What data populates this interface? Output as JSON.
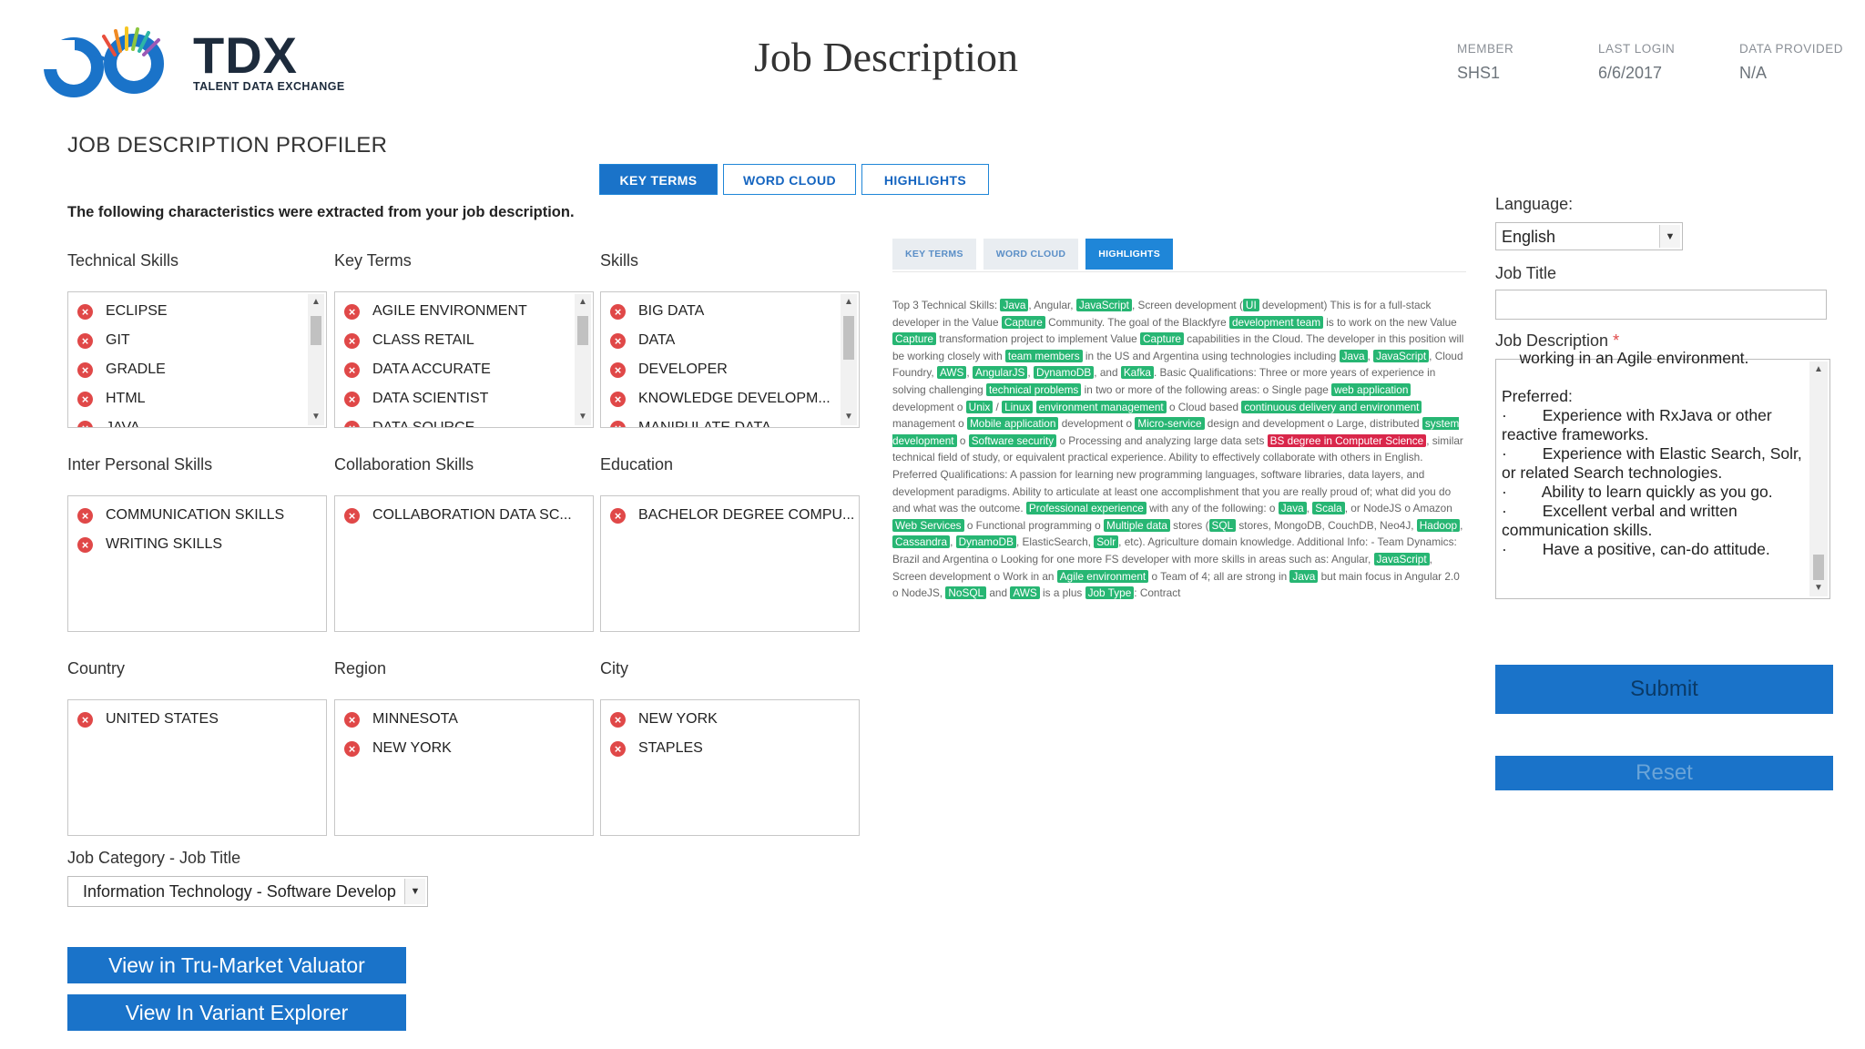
{
  "brand": {
    "name": "TDX",
    "tagline": "TALENT DATA EXCHANGE"
  },
  "page_title": "Job Description",
  "meta": [
    {
      "label": "MEMBER",
      "value": "SHS1"
    },
    {
      "label": "LAST LOGIN",
      "value": "6/6/2017"
    },
    {
      "label": "DATA PROVIDED",
      "value": "N/A"
    }
  ],
  "section_title": "JOB DESCRIPTION PROFILER",
  "tabs": [
    "KEY TERMS",
    "WORD CLOUD",
    "HIGHLIGHTS"
  ],
  "active_tab": "KEY TERMS",
  "intro": "The following characteristics were extracted from your job description.",
  "boxes": {
    "technical_skills": {
      "label": "Technical Skills",
      "items": [
        "ECLIPSE",
        "GIT",
        "GRADLE",
        "HTML",
        "JAVA"
      ]
    },
    "key_terms": {
      "label": "Key Terms",
      "items": [
        "AGILE ENVIRONMENT",
        "CLASS RETAIL",
        "DATA ACCURATE",
        "DATA SCIENTIST",
        "DATA SOURCE"
      ]
    },
    "skills": {
      "label": "Skills",
      "items": [
        "BIG DATA",
        "DATA",
        "DEVELOPER",
        "KNOWLEDGE DEVELOPM...",
        "MANIPULATE DATA"
      ]
    },
    "inter_personal": {
      "label": "Inter Personal Skills",
      "items": [
        "COMMUNICATION SKILLS",
        "WRITING SKILLS"
      ]
    },
    "collaboration": {
      "label": "Collaboration Skills",
      "items": [
        "COLLABORATION DATA SC..."
      ]
    },
    "education": {
      "label": "Education",
      "items": [
        "BACHELOR DEGREE COMPU..."
      ]
    },
    "country": {
      "label": "Country",
      "items": [
        "UNITED STATES"
      ]
    },
    "region": {
      "label": "Region",
      "items": [
        "MINNESOTA",
        "NEW YORK"
      ]
    },
    "city": {
      "label": "City",
      "items": [
        "NEW YORK",
        "STAPLES"
      ]
    }
  },
  "remove_glyph": "×",
  "job_category": {
    "label": "Job Category - Job Title",
    "value": "Information Technology - Software Develop"
  },
  "buttons": {
    "valuator": "View in Tru-Market Valuator",
    "explorer": "View In Variant Explorer",
    "submit": "Submit",
    "reset": "Reset"
  },
  "preview_tabs": [
    "KEY TERMS",
    "WORD CLOUD",
    "HIGHLIGHTS"
  ],
  "preview_active": "HIGHLIGHTS",
  "preview_segments": [
    [
      "t",
      "Top 3 Technical Skills: "
    ],
    [
      "g",
      "Java"
    ],
    [
      "t",
      ", Angular, "
    ],
    [
      "g",
      "JavaScript"
    ],
    [
      "t",
      ", Screen development ("
    ],
    [
      "g",
      "UI"
    ],
    [
      "t",
      " development) This is for a full-stack developer in the Value "
    ],
    [
      "g",
      "Capture"
    ],
    [
      "t",
      " Community. The goal of the Blackfyre "
    ],
    [
      "g",
      "development team"
    ],
    [
      "t",
      " is to work on the new Value "
    ],
    [
      "g",
      "Capture"
    ],
    [
      "t",
      " transformation project to implement Value "
    ],
    [
      "g",
      "Capture"
    ],
    [
      "t",
      " capabilities in the Cloud. The developer in this position will be working closely with "
    ],
    [
      "g",
      "team members"
    ],
    [
      "t",
      " in the US and Argentina using technologies including "
    ],
    [
      "g",
      "Java"
    ],
    [
      "t",
      ", "
    ],
    [
      "g",
      "JavaScript"
    ],
    [
      "t",
      ", Cloud Foundry, "
    ],
    [
      "g",
      "AWS"
    ],
    [
      "t",
      ", "
    ],
    [
      "g",
      "AngularJS"
    ],
    [
      "t",
      ", "
    ],
    [
      "g",
      "DynamoDB"
    ],
    [
      "t",
      ", and "
    ],
    [
      "g",
      "Kafka"
    ],
    [
      "t",
      ". Basic Qualifications: Three or more years of experience in solving challenging "
    ],
    [
      "g",
      "technical problems"
    ],
    [
      "t",
      " in two or more of the following areas: o Single page "
    ],
    [
      "g",
      "web application"
    ],
    [
      "t",
      " development o "
    ],
    [
      "g",
      "Unix"
    ],
    [
      "t",
      " / "
    ],
    [
      "g",
      "Linux"
    ],
    [
      "t",
      " "
    ],
    [
      "g",
      "environment management"
    ],
    [
      "t",
      " o Cloud based "
    ],
    [
      "g",
      "continuous delivery and environment"
    ],
    [
      "t",
      " management o "
    ],
    [
      "g",
      "Mobile application"
    ],
    [
      "t",
      " development o "
    ],
    [
      "g",
      "Micro-service"
    ],
    [
      "t",
      " design and development o Large, distributed "
    ],
    [
      "g",
      "system development"
    ],
    [
      "t",
      " o "
    ],
    [
      "g",
      "Software security"
    ],
    [
      "t",
      " o Processing and analyzing large data sets "
    ],
    [
      "r",
      "BS degree in Computer Science"
    ],
    [
      "t",
      ", similar technical field of study, or equivalent practical experience. Ability to effectively collaborate with others in English. Preferred Qualifications: A passion for learning new programming languages, software libraries, data layers, and development paradigms. Ability to articulate at least one accomplishment that you are really proud of; what did you do and what was the outcome. "
    ],
    [
      "g",
      "Professional experience"
    ],
    [
      "t",
      " with any of the following: o "
    ],
    [
      "g",
      "Java"
    ],
    [
      "t",
      ", "
    ],
    [
      "g",
      "Scala"
    ],
    [
      "t",
      ", or NodeJS o Amazon "
    ],
    [
      "g",
      "Web Services"
    ],
    [
      "t",
      " o Functional programming o "
    ],
    [
      "g",
      "Multiple data"
    ],
    [
      "t",
      " stores ("
    ],
    [
      "g",
      "SQL"
    ],
    [
      "t",
      " stores, MongoDB, CouchDB, Neo4J, "
    ],
    [
      "g",
      "Hadoop"
    ],
    [
      "t",
      ", "
    ],
    [
      "g",
      "Cassandra"
    ],
    [
      "t",
      ", "
    ],
    [
      "g",
      "DynamoDB"
    ],
    [
      "t",
      ", ElasticSearch, "
    ],
    [
      "g",
      "Solr"
    ],
    [
      "t",
      ", etc). Agriculture domain knowledge. Additional Info: - Team Dynamics: Brazil and Argentina o Looking for one more FS developer with more skills in areas such as: Angular, "
    ],
    [
      "g",
      "JavaScript"
    ],
    [
      "t",
      ", Screen development o Work in an "
    ],
    [
      "g",
      "Agile environment"
    ],
    [
      "t",
      " o Team of 4; all are strong in "
    ],
    [
      "g",
      "Java"
    ],
    [
      "t",
      " but main focus in Angular 2.0 o NodeJS, "
    ],
    [
      "g",
      "NoSQL"
    ],
    [
      "t",
      " and "
    ],
    [
      "g",
      "AWS"
    ],
    [
      "t",
      " is a plus "
    ],
    [
      "g",
      "Job Type"
    ],
    [
      "t",
      ": Contract"
    ]
  ],
  "form": {
    "language_label": "Language:",
    "language_value": "English",
    "job_title_label": "Job Title",
    "job_title_value": "",
    "job_description_label": "Job Description",
    "required_mark": "*",
    "job_description_text": "    working in an Agile environment.\n\nPreferred:\n·        Experience with RxJava or other reactive frameworks.\n·        Experience with Elastic Search, Solr, or related Search technologies.\n·        Ability to learn quickly as you go.\n·        Excellent verbal and written communication skills.\n·        Have a positive, can-do attitude."
  },
  "colors": {
    "accent": "#1a73c9",
    "highlight_green": "#27b673",
    "highlight_red": "#d9264a",
    "remove_red": "#e04848"
  }
}
